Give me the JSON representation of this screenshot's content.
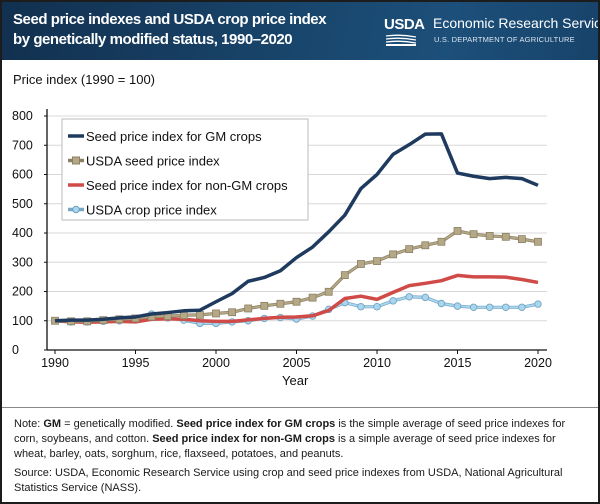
{
  "header": {
    "title_line1": "Seed price indexes and USDA crop price index",
    "title_line2": "by genetically modified status, 1990–2020",
    "logo_text": "USDA",
    "agency": "Economic Research Service",
    "department": "U.S. DEPARTMENT OF AGRICULTURE"
  },
  "chart_data": {
    "type": "line",
    "ylabel": "Price index (1990 = 100)",
    "xlabel": "Year",
    "ylim": [
      0,
      800
    ],
    "xlim": [
      1990,
      2020
    ],
    "yticks": [
      "0",
      "100",
      "200",
      "300",
      "400",
      "500",
      "600",
      "700",
      "800"
    ],
    "xticks": [
      "1990",
      "1995",
      "2000",
      "2005",
      "2010",
      "2015",
      "2020"
    ],
    "grid": "horizontal",
    "legend_position": "top-left",
    "x": [
      1990,
      1991,
      1992,
      1993,
      1994,
      1995,
      1996,
      1997,
      1998,
      1999,
      2000,
      2001,
      2002,
      2003,
      2004,
      2005,
      2006,
      2007,
      2008,
      2009,
      2010,
      2011,
      2012,
      2013,
      2014,
      2015,
      2016,
      2017,
      2018,
      2019,
      2020
    ],
    "series": [
      {
        "name": "Seed price index for GM crops",
        "color": "#1f3a5f",
        "marker": "none",
        "values": [
          100,
          102,
          102,
          105,
          110,
          113,
          123,
          128,
          134,
          136,
          165,
          193,
          235,
          248,
          271,
          316,
          352,
          404,
          461,
          552,
          600,
          669,
          702,
          738,
          739,
          605,
          594,
          586,
          590,
          586,
          563
        ]
      },
      {
        "name": "USDA seed price index",
        "color": "#b5a886",
        "marker": "square",
        "values": [
          100,
          98,
          98,
          102,
          105,
          108,
          114,
          116,
          119,
          120,
          125,
          129,
          142,
          151,
          158,
          165,
          179,
          199,
          256,
          294,
          304,
          327,
          345,
          358,
          370,
          407,
          396,
          390,
          387,
          379,
          370
        ]
      },
      {
        "name": "Seed price index for non-GM crops",
        "color": "#d04a48",
        "marker": "none",
        "values": [
          100,
          96,
          95,
          96,
          98,
          96,
          105,
          107,
          105,
          100,
          98,
          98,
          103,
          108,
          112,
          113,
          117,
          135,
          176,
          184,
          173,
          197,
          220,
          228,
          237,
          255,
          250,
          250,
          249,
          241,
          231
        ]
      },
      {
        "name": "USDA crop price index",
        "color": "#a9d6ef",
        "marker": "circle",
        "values": [
          100,
          96,
          96,
          98,
          100,
          105,
          123,
          110,
          102,
          91,
          91,
          96,
          100,
          108,
          111,
          106,
          116,
          139,
          162,
          148,
          148,
          168,
          182,
          180,
          159,
          150,
          146,
          146,
          146,
          146,
          157
        ]
      }
    ]
  },
  "footer": {
    "note": [
      {
        "t": "Note: ",
        "b": false
      },
      {
        "t": "GM",
        "b": true
      },
      {
        "t": " = genetically modified. ",
        "b": false
      },
      {
        "t": "Seed price index for GM crops",
        "b": true
      },
      {
        "t": " is the simple average of seed price indexes for corn, soybeans, and cotton. ",
        "b": false
      },
      {
        "t": "Seed price index for non-GM crops",
        "b": true
      },
      {
        "t": " is a simple average of seed price indexes for wheat, barley, oats, sorghum, rice, flaxseed, potatoes, and peanuts.",
        "b": false
      }
    ],
    "source": "Source: USDA, Economic Research Service using crop and seed price indexes from USDA, National Agricultural Statistics Service (NASS)."
  }
}
